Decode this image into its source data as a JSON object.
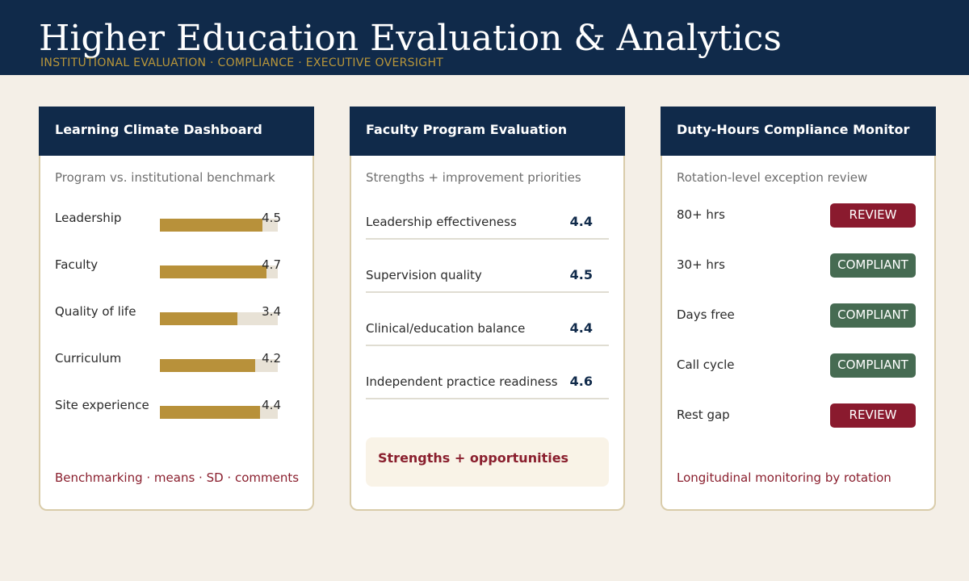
{
  "header": {
    "title": "Higher Education Evaluation & Analytics",
    "subtitle": "INSTITUTIONAL EVALUATION · COMPLIANCE · EXECUTIVE OVERSIGHT"
  },
  "learning_climate": {
    "title": "Learning Climate Dashboard",
    "subtitle": "Program vs. institutional benchmark",
    "scale_max": 5,
    "rows": [
      {
        "label": "Leadership",
        "value": "4.5",
        "score": 4.5
      },
      {
        "label": "Faculty",
        "value": "4.7",
        "score": 4.7
      },
      {
        "label": "Quality of life",
        "value": "3.4",
        "score": 3.4
      },
      {
        "label": "Curriculum",
        "value": "4.2",
        "score": 4.2
      },
      {
        "label": "Site experience",
        "value": "4.4",
        "score": 4.4
      }
    ],
    "footer": "Benchmarking · means · SD · comments"
  },
  "faculty_eval": {
    "title": "Faculty Program Evaluation",
    "subtitle": "Strengths + improvement priorities",
    "rows": [
      {
        "label": "Leadership effectiveness",
        "value": "4.4"
      },
      {
        "label": "Supervision quality",
        "value": "4.5"
      },
      {
        "label": "Clinical/education balance",
        "value": "4.4"
      },
      {
        "label": "Independent practice readiness",
        "value": "4.6"
      }
    ],
    "callout": "Strengths + opportunities"
  },
  "duty_hours": {
    "title": "Duty-Hours Compliance Monitor",
    "subtitle": "Rotation-level exception review",
    "rows": [
      {
        "label": "80+ hrs",
        "status": "REVIEW",
        "kind": "review"
      },
      {
        "label": "30+ hrs",
        "status": "COMPLIANT",
        "kind": "compliant"
      },
      {
        "label": "Days free",
        "status": "COMPLIANT",
        "kind": "compliant"
      },
      {
        "label": "Call cycle",
        "status": "COMPLIANT",
        "kind": "compliant"
      },
      {
        "label": "Rest gap",
        "status": "REVIEW",
        "kind": "review"
      }
    ],
    "footer": "Longitudinal monitoring by rotation"
  },
  "colors": {
    "navy": "#102a4a",
    "gold": "#b8913a",
    "review": "#8a1a2e",
    "compliant": "#466b52"
  }
}
